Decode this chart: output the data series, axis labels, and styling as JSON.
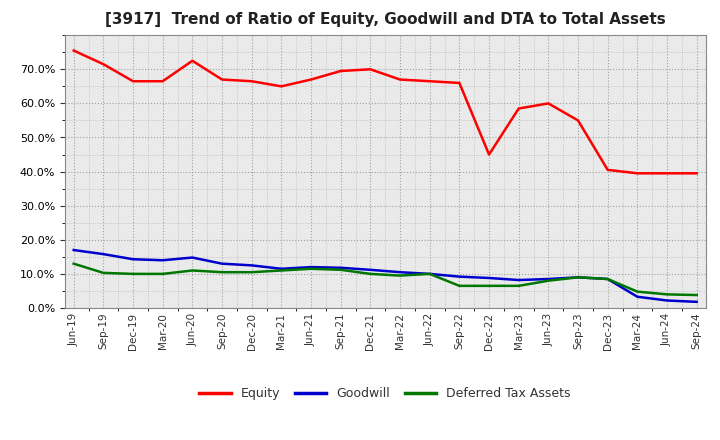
{
  "title": "[3917]  Trend of Ratio of Equity, Goodwill and DTA to Total Assets",
  "x_labels": [
    "Jun-19",
    "Sep-19",
    "Dec-19",
    "Mar-20",
    "Jun-20",
    "Sep-20",
    "Dec-20",
    "Mar-21",
    "Jun-21",
    "Sep-21",
    "Dec-21",
    "Mar-22",
    "Jun-22",
    "Sep-22",
    "Dec-22",
    "Mar-23",
    "Jun-23",
    "Sep-23",
    "Dec-23",
    "Mar-24",
    "Jun-24",
    "Sep-24"
  ],
  "equity": [
    0.755,
    0.715,
    0.665,
    0.665,
    0.725,
    0.67,
    0.665,
    0.65,
    0.67,
    0.695,
    0.7,
    0.67,
    0.665,
    0.66,
    0.45,
    0.585,
    0.6,
    0.55,
    0.405,
    0.395,
    0.395,
    0.395
  ],
  "goodwill": [
    0.17,
    0.158,
    0.143,
    0.14,
    0.148,
    0.13,
    0.125,
    0.115,
    0.12,
    0.118,
    0.112,
    0.105,
    0.1,
    0.092,
    0.088,
    0.082,
    0.085,
    0.09,
    0.085,
    0.033,
    0.022,
    0.018
  ],
  "dta": [
    0.13,
    0.103,
    0.1,
    0.1,
    0.11,
    0.105,
    0.105,
    0.11,
    0.115,
    0.112,
    0.1,
    0.095,
    0.1,
    0.065,
    0.065,
    0.065,
    0.08,
    0.09,
    0.085,
    0.048,
    0.04,
    0.038
  ],
  "equity_color": "#FF0000",
  "goodwill_color": "#0000CC",
  "dta_color": "#007700",
  "bg_color": "#FFFFFF",
  "plot_bg_color": "#EAEAEA",
  "grid_color": "#999999",
  "ylim": [
    0.0,
    0.8
  ],
  "yticks": [
    0.0,
    0.1,
    0.2,
    0.3,
    0.4,
    0.5,
    0.6,
    0.7
  ],
  "legend_labels": [
    "Equity",
    "Goodwill",
    "Deferred Tax Assets"
  ],
  "title_fontsize": 11,
  "line_width": 1.8
}
